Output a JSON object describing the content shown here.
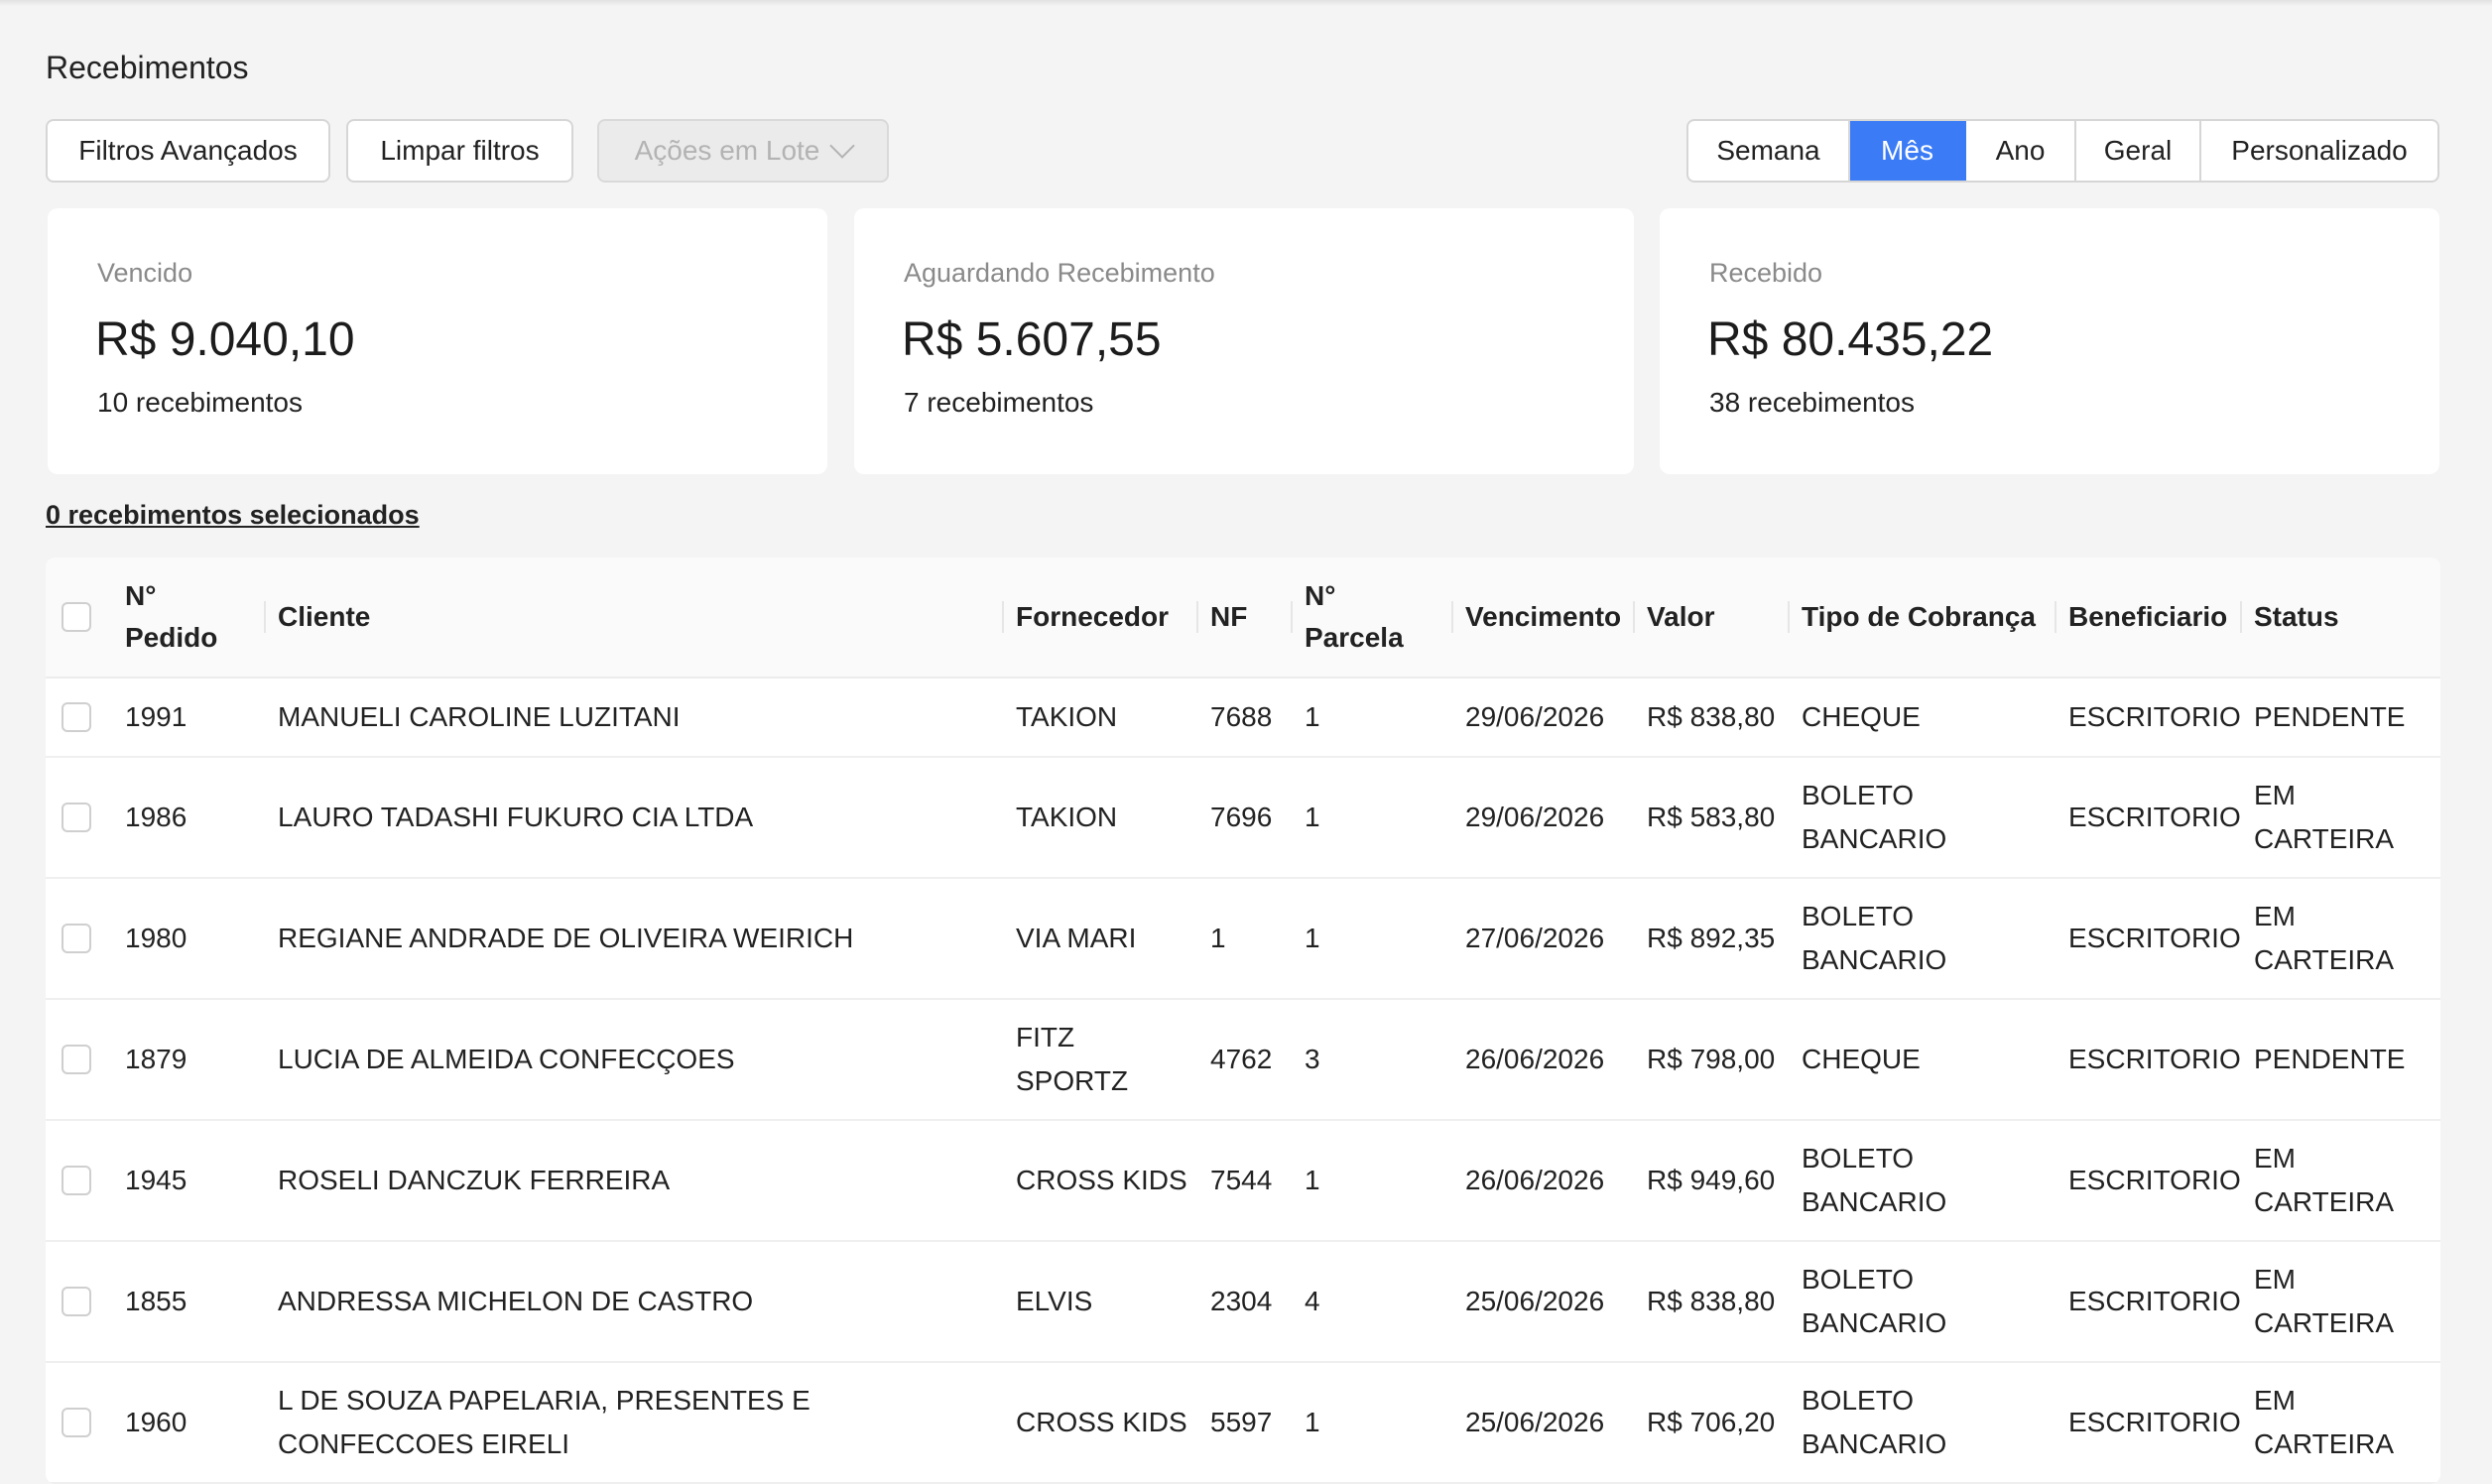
{
  "page_title": "Recebimentos",
  "toolbar": {
    "filtros_label": "Filtros Avançados",
    "limpar_label": "Limpar filtros",
    "acoes_label": "Ações em Lote"
  },
  "period": {
    "options": [
      "Semana",
      "Mês",
      "Ano",
      "Geral",
      "Personalizado"
    ],
    "selected": "Mês"
  },
  "summary": [
    {
      "label": "Vencido",
      "amount": "R$ 9.040,10",
      "count": "10 recebimentos"
    },
    {
      "label": "Aguardando Recebimento",
      "amount": "R$ 5.607,55",
      "count": "7 recebimentos"
    },
    {
      "label": "Recebido",
      "amount": "R$ 80.435,22",
      "count": "38 recebimentos"
    }
  ],
  "selection_info": "0 recebimentos selecionados",
  "table": {
    "headers": {
      "pedido": "N° Pedido",
      "cliente": "Cliente",
      "fornecedor": "Fornecedor",
      "nf": "NF",
      "parcela": "N° Parcela",
      "vencimento": "Vencimento",
      "valor": "Valor",
      "tipo": "Tipo de Cobrança",
      "beneficiario": "Beneficiario",
      "status": "Status"
    },
    "rows": [
      {
        "pedido": "1991",
        "cliente": "MANUELI CAROLINE LUZITANI",
        "fornecedor": "TAKION",
        "nf": "7688",
        "parcela": "1",
        "vencimento": "29/06/2026",
        "valor": "R$ 838,80",
        "tipo": "CHEQUE",
        "beneficiario": "ESCRITORIO",
        "status": "PENDENTE"
      },
      {
        "pedido": "1986",
        "cliente": "LAURO TADASHI FUKURO CIA LTDA",
        "fornecedor": "TAKION",
        "nf": "7696",
        "parcela": "1",
        "vencimento": "29/06/2026",
        "valor": "R$ 583,80",
        "tipo": "BOLETO BANCARIO",
        "beneficiario": "ESCRITORIO",
        "status": "EM CARTEIRA"
      },
      {
        "pedido": "1980",
        "cliente": "REGIANE ANDRADE DE OLIVEIRA WEIRICH",
        "fornecedor": "VIA MARI",
        "nf": "1",
        "parcela": "1",
        "vencimento": "27/06/2026",
        "valor": "R$ 892,35",
        "tipo": "BOLETO BANCARIO",
        "beneficiario": "ESCRITORIO",
        "status": "EM CARTEIRA"
      },
      {
        "pedido": "1879",
        "cliente": "LUCIA DE ALMEIDA CONFECÇOES",
        "fornecedor": "FITZ SPORTZ",
        "nf": "4762",
        "parcela": "3",
        "vencimento": "26/06/2026",
        "valor": "R$ 798,00",
        "tipo": "CHEQUE",
        "beneficiario": "ESCRITORIO",
        "status": "PENDENTE"
      },
      {
        "pedido": "1945",
        "cliente": "ROSELI DANCZUK FERREIRA",
        "fornecedor": "CROSS KIDS",
        "nf": "7544",
        "parcela": "1",
        "vencimento": "26/06/2026",
        "valor": "R$ 949,60",
        "tipo": "BOLETO BANCARIO",
        "beneficiario": "ESCRITORIO",
        "status": "EM CARTEIRA"
      },
      {
        "pedido": "1855",
        "cliente": "ANDRESSA MICHELON DE CASTRO",
        "fornecedor": "ELVIS",
        "nf": "2304",
        "parcela": "4",
        "vencimento": "25/06/2026",
        "valor": "R$ 838,80",
        "tipo": "BOLETO BANCARIO",
        "beneficiario": "ESCRITORIO",
        "status": "EM CARTEIRA"
      },
      {
        "pedido": "1960",
        "cliente": "L DE SOUZA PAPELARIA, PRESENTES E CONFECCOES EIRELI",
        "fornecedor": "CROSS KIDS",
        "nf": "5597",
        "parcela": "1",
        "vencimento": "25/06/2026",
        "valor": "R$ 706,20",
        "tipo": "BOLETO BANCARIO",
        "beneficiario": "ESCRITORIO",
        "status": "EM CARTEIRA"
      }
    ]
  }
}
